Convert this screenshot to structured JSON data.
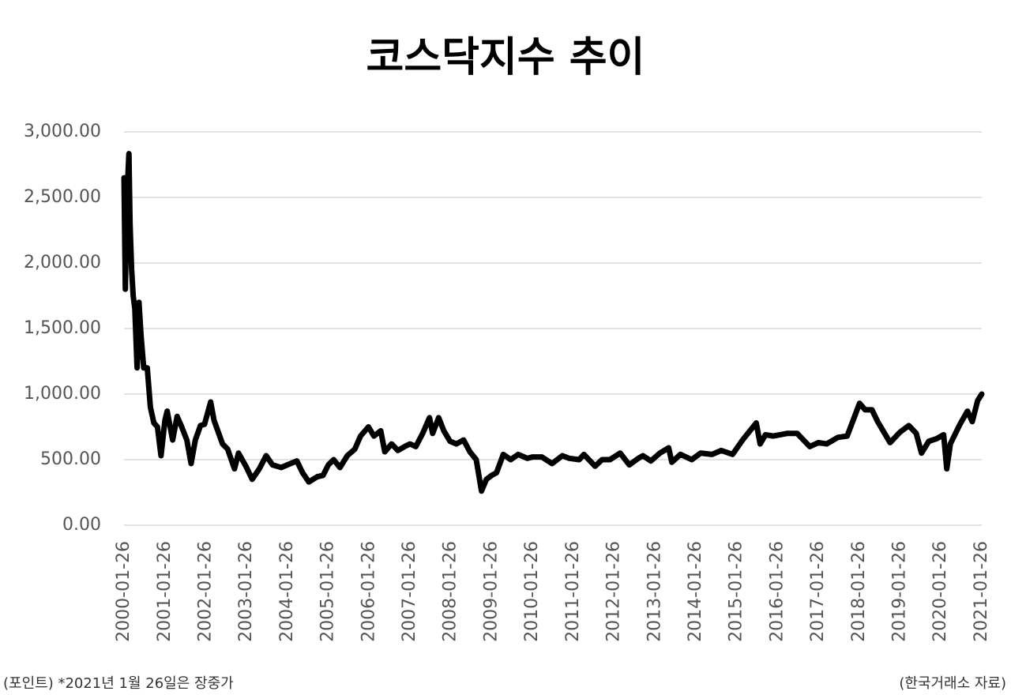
{
  "chart_data": {
    "type": "line",
    "title": "코스닥지수 추이",
    "notes": [
      "(포인트) *2021년 1월 26일은 장중가",
      "(한국거래소 자료)"
    ],
    "color": "#000000",
    "grid": true,
    "x": [
      "2000-01-26",
      "2000-02-07",
      "2000-02-21",
      "2000-03-10",
      "2000-03-20",
      "2000-04-03",
      "2000-04-17",
      "2000-05-02",
      "2000-05-22",
      "2000-06-08",
      "2000-06-26",
      "2000-07-20",
      "2000-08-21",
      "2000-09-18",
      "2000-10-19",
      "2000-11-20",
      "2000-12-22",
      "2001-01-26",
      "2001-02-15",
      "2001-04-05",
      "2001-05-15",
      "2001-06-20",
      "2001-08-10",
      "2001-09-17",
      "2001-10-25",
      "2001-12-10",
      "2002-01-15",
      "2002-03-11",
      "2002-04-10",
      "2002-06-25",
      "2002-08-10",
      "2002-10-10",
      "2002-11-15",
      "2003-01-20",
      "2003-03-17",
      "2003-05-20",
      "2003-07-20",
      "2003-09-15",
      "2003-12-01",
      "2004-01-26",
      "2004-04-20",
      "2004-06-10",
      "2004-08-05",
      "2004-10-20",
      "2004-12-10",
      "2005-01-26",
      "2005-03-15",
      "2005-05-10",
      "2005-07-15",
      "2005-09-20",
      "2005-11-10",
      "2006-01-20",
      "2006-03-10",
      "2006-05-10",
      "2006-06-15",
      "2006-08-15",
      "2006-10-10",
      "2006-12-10",
      "2007-01-26",
      "2007-03-20",
      "2007-05-20",
      "2007-07-20",
      "2007-08-17",
      "2007-10-10",
      "2007-11-25",
      "2008-01-20",
      "2008-03-17",
      "2008-05-20",
      "2008-07-15",
      "2008-09-10",
      "2008-10-27",
      "2008-12-10",
      "2009-01-26",
      "2009-03-10",
      "2009-05-10",
      "2009-07-15",
      "2009-09-20",
      "2009-12-10",
      "2010-01-26",
      "2010-04-20",
      "2010-07-20",
      "2010-10-20",
      "2010-12-20",
      "2011-03-20",
      "2011-05-01",
      "2011-08-09",
      "2011-10-10",
      "2011-12-20",
      "2012-03-20",
      "2012-06-10",
      "2012-08-30",
      "2012-10-10",
      "2012-12-20",
      "2013-03-10",
      "2013-05-28",
      "2013-06-25",
      "2013-09-10",
      "2013-12-20",
      "2014-03-10",
      "2014-06-20",
      "2014-09-10",
      "2014-12-20",
      "2015-03-20",
      "2015-07-20",
      "2015-08-24",
      "2015-10-10",
      "2015-12-20",
      "2016-04-20",
      "2016-07-20",
      "2016-11-10",
      "2017-01-26",
      "2017-04-10",
      "2017-07-20",
      "2017-10-10",
      "2017-11-28",
      "2018-01-29",
      "2018-03-20",
      "2018-05-20",
      "2018-07-10",
      "2018-10-29",
      "2019-01-26",
      "2019-04-15",
      "2019-06-20",
      "2019-08-06",
      "2019-10-10",
      "2019-12-20",
      "2020-02-20",
      "2020-03-19",
      "2020-04-20",
      "2020-07-15",
      "2020-09-20",
      "2020-11-02",
      "2020-12-20",
      "2021-01-26"
    ],
    "values": [
      2650,
      1800,
      2500,
      2834,
      2300,
      1950,
      1750,
      1650,
      1200,
      1700,
      1450,
      1200,
      1200,
      900,
      780,
      750,
      530,
      800,
      870,
      650,
      830,
      760,
      650,
      470,
      650,
      760,
      770,
      940,
      800,
      620,
      580,
      430,
      550,
      450,
      350,
      430,
      530,
      460,
      440,
      460,
      490,
      400,
      330,
      370,
      380,
      460,
      500,
      440,
      530,
      580,
      680,
      750,
      680,
      720,
      560,
      620,
      570,
      600,
      620,
      600,
      700,
      820,
      700,
      820,
      720,
      640,
      620,
      650,
      560,
      500,
      260,
      350,
      380,
      400,
      540,
      500,
      540,
      510,
      520,
      520,
      470,
      530,
      510,
      500,
      540,
      450,
      500,
      500,
      550,
      460,
      510,
      530,
      490,
      550,
      590,
      480,
      540,
      500,
      550,
      540,
      570,
      540,
      650,
      780,
      620,
      690,
      680,
      700,
      700,
      600,
      630,
      620,
      670,
      680,
      790,
      930,
      880,
      880,
      790,
      630,
      710,
      760,
      700,
      550,
      640,
      660,
      690,
      430,
      620,
      770,
      870,
      790,
      950,
      1000
    ],
    "xlim": [
      "2000-01-26",
      "2021-01-26"
    ],
    "xticks": [
      "2000-01-26",
      "2001-01-26",
      "2002-01-26",
      "2003-01-26",
      "2004-01-26",
      "2005-01-26",
      "2006-01-26",
      "2007-01-26",
      "2008-01-26",
      "2009-01-26",
      "2010-01-26",
      "2011-01-26",
      "2012-01-26",
      "2013-01-26",
      "2014-01-26",
      "2015-01-26",
      "2016-01-26",
      "2017-01-26",
      "2018-01-26",
      "2019-01-26",
      "2020-01-26",
      "2021-01-26"
    ],
    "ylim": [
      0,
      3000
    ],
    "yticks": [
      {
        "value": 0,
        "label": "0.00"
      },
      {
        "value": 500,
        "label": "500.00"
      },
      {
        "value": 1000,
        "label": "1,000.00"
      },
      {
        "value": 1500,
        "label": "1,500.00"
      },
      {
        "value": 2000,
        "label": "2,000.00"
      },
      {
        "value": 2500,
        "label": "2,500.00"
      },
      {
        "value": 3000,
        "label": "3,000.00"
      }
    ]
  }
}
